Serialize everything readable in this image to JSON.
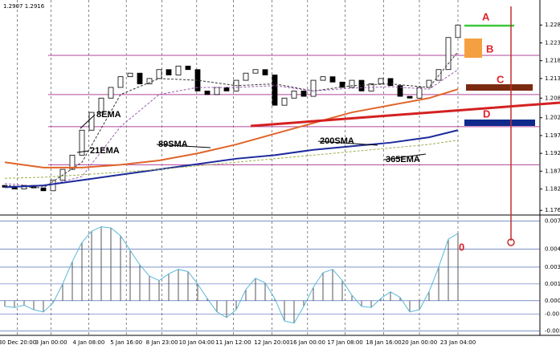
{
  "chart_data": [
    {
      "type": "candlestick",
      "header": "1.2907 1.2916",
      "open": [
        1.1835,
        1.183,
        1.1825,
        1.1835,
        1.1828,
        1.182,
        1.185,
        1.188,
        1.192,
        1.199,
        1.204,
        1.208,
        1.211,
        1.214,
        1.215,
        1.212,
        1.2135,
        1.216,
        1.2145,
        1.217,
        1.216,
        1.21,
        1.209,
        1.211,
        1.21,
        1.213,
        1.215,
        1.216,
        1.2145,
        1.206,
        1.208,
        1.21,
        1.2085,
        1.213,
        1.214,
        1.2125,
        1.211,
        1.213,
        1.21,
        1.212,
        1.2135,
        1.2115,
        1.2085,
        1.208,
        1.211,
        1.213,
        1.216,
        1.225
      ],
      "close": [
        1.183,
        1.1825,
        1.1835,
        1.1828,
        1.182,
        1.185,
        1.188,
        1.192,
        1.199,
        1.204,
        1.208,
        1.211,
        1.214,
        1.215,
        1.212,
        1.2135,
        1.216,
        1.2145,
        1.217,
        1.216,
        1.21,
        1.209,
        1.211,
        1.21,
        1.213,
        1.215,
        1.216,
        1.2145,
        1.206,
        1.208,
        1.21,
        1.2085,
        1.213,
        1.214,
        1.2125,
        1.211,
        1.213,
        1.21,
        1.212,
        1.2135,
        1.2115,
        1.2085,
        1.208,
        1.211,
        1.213,
        1.216,
        1.225,
        1.2285
      ],
      "up_color": "#ffffff",
      "down_color": "#000000",
      "ma_x": [
        0,
        4,
        8,
        12,
        16,
        20,
        24,
        28,
        32,
        36,
        40,
        44,
        47
      ],
      "series": [
        {
          "name": "8EMA",
          "color": "#333333",
          "dashed": true,
          "values": [
            1.1835,
            1.1828,
            1.19,
            1.209,
            1.2135,
            1.213,
            1.2115,
            1.212,
            1.21,
            1.2115,
            1.212,
            1.211,
            1.221
          ]
        },
        {
          "name": "21EMA",
          "color": "#9a5fb0",
          "dashed": true,
          "values": [
            1.184,
            1.1832,
            1.186,
            1.2,
            1.209,
            1.211,
            1.211,
            1.2115,
            1.21,
            1.2108,
            1.2112,
            1.2105,
            1.216
          ]
        },
        {
          "name": "89SMA",
          "color": "#e0652a",
          "dashed": false,
          "values": [
            1.19,
            1.1885,
            1.1885,
            1.1893,
            1.1905,
            1.1925,
            1.195,
            1.198,
            1.201,
            1.204,
            1.206,
            1.208,
            1.2105
          ]
        },
        {
          "name": "200SMA",
          "color": "#1c2a9c",
          "dashed": false,
          "values": [
            1.183,
            1.1835,
            1.185,
            1.1865,
            1.188,
            1.1895,
            1.191,
            1.192,
            1.1935,
            1.1945,
            1.1955,
            1.197,
            1.199
          ]
        },
        {
          "name": "365EMA",
          "color": "#9bb04a",
          "dashed": true,
          "values": [
            1.1855,
            1.1858,
            1.1865,
            1.1872,
            1.188,
            1.189,
            1.19,
            1.191,
            1.192,
            1.193,
            1.194,
            1.195,
            1.1962
          ]
        }
      ],
      "levels": [
        1.22,
        1.209,
        1.2,
        1.1893
      ],
      "level_color": "#b0449a",
      "annotations": [
        "A",
        "B",
        "C",
        "D"
      ],
      "ylim": [
        1.1752,
        1.2344
      ],
      "yticks": [
        1.2285,
        1.2235,
        1.2185,
        1.2135,
        {
          "value": 1.208,
          "label": "1.2080"
        },
        1.2025,
        1.1975,
        1.1925,
        1.1875,
        1.1825,
        1.1765
      ],
      "xticks": [
        {
          "value": 1.3,
          "label": "30 Dec 20:00"
        },
        {
          "value": 4.8,
          "label": "3 Jan 00:00"
        },
        {
          "value": 8.7,
          "label": "4 Jan 08:00"
        },
        {
          "value": 12.6,
          "label": "5 Jan 16:00"
        },
        {
          "value": 16.3,
          "label": "8 Jan 23:00"
        },
        {
          "value": 19.9,
          "label": "10 Jan 04:00"
        },
        {
          "value": 23.7,
          "label": "11 Jan 12:00"
        },
        {
          "value": 27.7,
          "label": "12 Jan 20:00"
        },
        {
          "value": 31.4,
          "label": "16 Jan 00:00"
        },
        {
          "value": 35.3,
          "label": "17 Jan 08:00"
        },
        {
          "value": 39.3,
          "label": "18 Jan 16:00"
        },
        {
          "value": 43,
          "label": "20 Jan 00:00"
        },
        {
          "value": 47,
          "label": "23 Jan 04:00"
        }
      ]
    },
    {
      "type": "histogram-oscillator",
      "marker": "0",
      "values": [
        -0.0005,
        -0.0006,
        -0.0004,
        -0.0008,
        -0.001,
        -0.0002,
        0.0015,
        0.0035,
        0.0052,
        0.0062,
        0.0066,
        0.0065,
        0.0058,
        0.0045,
        0.0032,
        0.0022,
        0.0018,
        0.0024,
        0.0028,
        0.0026,
        0.0015,
        0.0002,
        -0.001,
        -0.0015,
        -0.0008,
        0.001,
        0.002,
        0.0016,
        0.0002,
        -0.0018,
        -0.002,
        -0.0005,
        0.0012,
        0.0025,
        0.0028,
        0.0018,
        0.0005,
        -0.0005,
        -0.0006,
        0.0002,
        0.0008,
        0.0003,
        -0.001,
        -0.0008,
        0.0008,
        0.003,
        0.0055,
        0.006
      ],
      "color": "#555555",
      "line_color": "#5bb8d8",
      "grid_color": "#3050a8",
      "ylim": [
        -0.0028,
        0.0075
      ],
      "yticks": [
        0.0071,
        0.0046,
        {
          "value": 0.003,
          "label": "0.0030"
        },
        0.0015,
        {
          "value": 0,
          "label": "0.0000"
        },
        -0.0012,
        -0.0027
      ]
    }
  ]
}
